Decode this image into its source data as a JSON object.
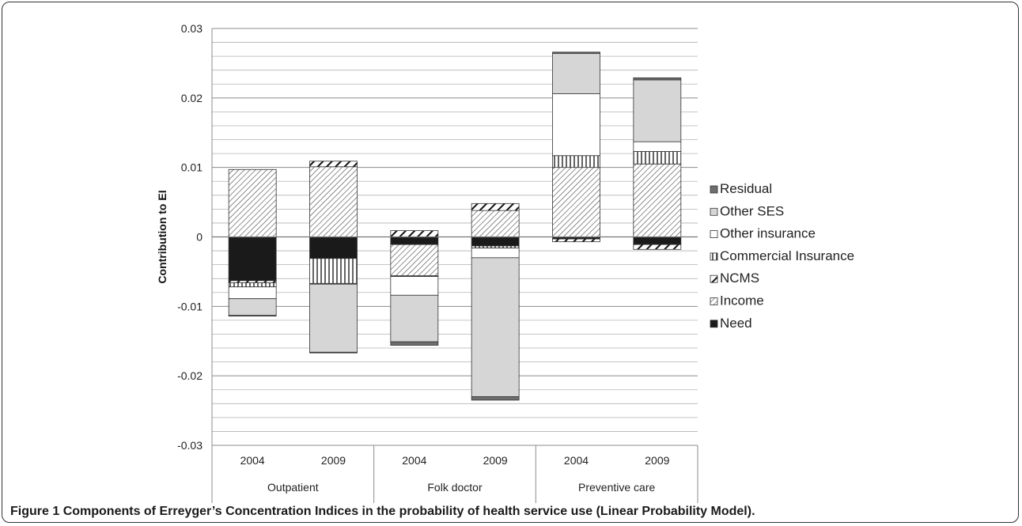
{
  "caption": {
    "label": "Figure 1",
    "text": "Components of Erreyger’s Concentration Indices in the probability of health service use (Linear Probability Model)."
  },
  "chart_data": {
    "type": "bar",
    "stacked": true,
    "ylabel": "Contribution to EI",
    "ylim": [
      -0.03,
      0.03
    ],
    "ytick_labels": [
      "0.03",
      "0.02",
      "0.01",
      "0",
      "-0.01",
      "-0.02",
      "-0.03"
    ],
    "grid": true,
    "legend_position": "right",
    "groups": [
      {
        "label": "Outpatient",
        "categories": [
          "2004",
          "2009"
        ]
      },
      {
        "label": "Folk doctor",
        "categories": [
          "2004",
          "2009"
        ]
      },
      {
        "label": "Preventive care",
        "categories": [
          "2004",
          "2009"
        ]
      }
    ],
    "categories": [
      "2004",
      "2009",
      "2004",
      "2009",
      "2004",
      "2009"
    ],
    "series": [
      {
        "name": "Need",
        "pattern": "solid-black",
        "values": [
          -0.0063,
          -0.0031,
          -0.0011,
          -0.0013,
          -0.0003,
          -0.0011
        ]
      },
      {
        "name": "Income",
        "pattern": "diagonal-thin",
        "values": [
          0.0097,
          0.0101,
          -0.0045,
          0.0038,
          0.01,
          0.0105
        ]
      },
      {
        "name": "NCMS",
        "pattern": "diagonal-bold",
        "values": [
          -0.0003,
          0.0008,
          0.0009,
          0.001,
          -0.0004,
          -0.0007
        ]
      },
      {
        "name": "Commercial Insurance",
        "pattern": "vertical-lines",
        "values": [
          -0.0006,
          -0.0036,
          -0.0001,
          -0.0003,
          0.0017,
          0.0018
        ]
      },
      {
        "name": "Other insurance",
        "pattern": "white",
        "values": [
          -0.0017,
          -0.0001,
          -0.0027,
          -0.0014,
          0.0089,
          0.0014
        ]
      },
      {
        "name": "Other SES",
        "pattern": "light-gray",
        "values": [
          -0.0024,
          -0.0098,
          -0.0067,
          -0.02,
          0.0058,
          0.0089
        ]
      },
      {
        "name": "Residual",
        "pattern": "dark-gray",
        "values": [
          -0.0001,
          -0.0001,
          -0.0005,
          -0.0005,
          0.0002,
          0.0003
        ]
      }
    ],
    "legend_order": [
      "Residual",
      "Other SES",
      "Other insurance",
      "Commercial Insurance",
      "NCMS",
      "Income",
      "Need"
    ]
  }
}
